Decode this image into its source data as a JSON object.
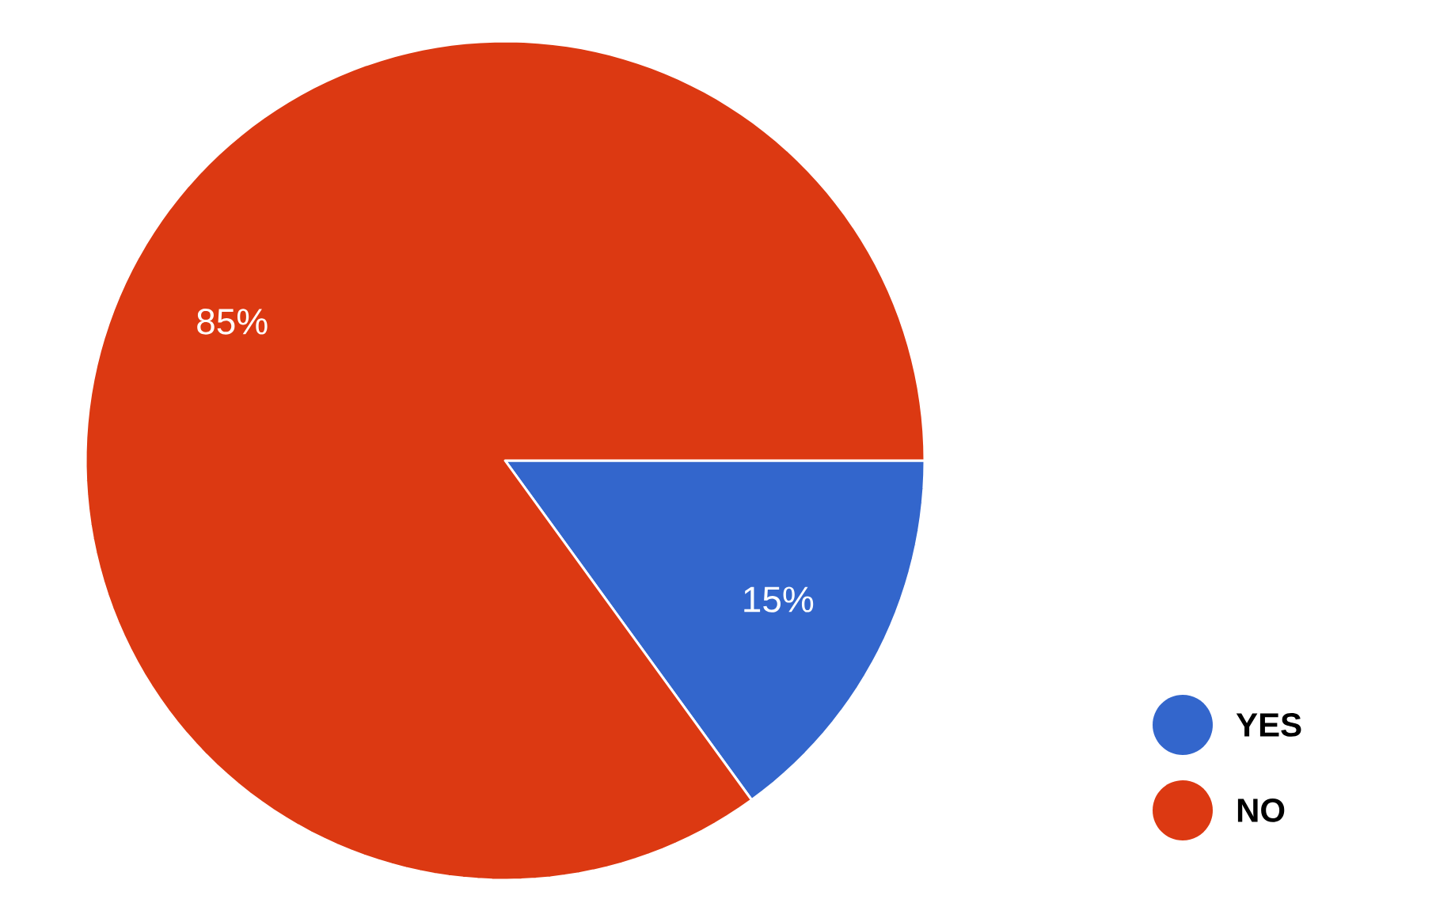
{
  "chart_data": {
    "type": "pie",
    "categories": [
      "YES",
      "NO"
    ],
    "values": [
      15,
      85
    ],
    "colors": [
      "#3366cc",
      "#dc3912"
    ],
    "value_labels": [
      "15%",
      "85%"
    ],
    "legend": "bottom right"
  }
}
